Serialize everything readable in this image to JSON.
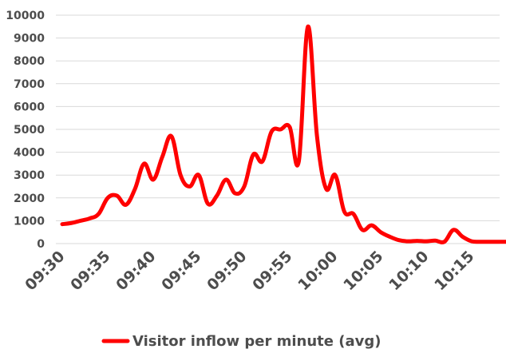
{
  "chart_data": {
    "type": "line",
    "title": "",
    "xlabel": "",
    "ylabel": "",
    "ylim": [
      0,
      10000
    ],
    "yticks": [
      0,
      1000,
      2000,
      3000,
      4000,
      5000,
      6000,
      7000,
      8000,
      9000,
      10000
    ],
    "ytick_labels": [
      "0",
      "1000",
      "2000",
      "3000",
      "4000",
      "5000",
      "6000",
      "7000",
      "8000",
      "9000",
      "10000"
    ],
    "xtick_labels": [
      "09:30",
      "09:35",
      "09:40",
      "09:45",
      "09:50",
      "09:55",
      "10:00",
      "10:05",
      "10:10",
      "10:15"
    ],
    "grid": true,
    "legend_position": "bottom",
    "series": [
      {
        "name": "Visitor inflow per minute (avg)",
        "color": "#ff0000",
        "x": [
          "09:30",
          "09:31",
          "09:32",
          "09:33",
          "09:34",
          "09:35",
          "09:36",
          "09:37",
          "09:38",
          "09:39",
          "09:40",
          "09:41",
          "09:42",
          "09:43",
          "09:44",
          "09:45",
          "09:46",
          "09:47",
          "09:48",
          "09:49",
          "09:50",
          "09:51",
          "09:52",
          "09:53",
          "09:54",
          "09:55",
          "09:56",
          "09:57",
          "09:58",
          "09:59",
          "10:00",
          "10:01",
          "10:02",
          "10:03",
          "10:04",
          "10:05",
          "10:06",
          "10:07",
          "10:08",
          "10:09",
          "10:10",
          "10:11",
          "10:12",
          "10:13",
          "10:14",
          "10:15",
          "10:16",
          "10:17",
          "10:18",
          "10:19"
        ],
        "values": [
          850,
          900,
          1000,
          1100,
          1300,
          2000,
          2100,
          1700,
          2400,
          3500,
          2800,
          3800,
          4700,
          3000,
          2500,
          3000,
          1750,
          2100,
          2800,
          2200,
          2500,
          3900,
          3600,
          4900,
          5000,
          5100,
          3600,
          9500,
          4700,
          2400,
          3000,
          1400,
          1300,
          600,
          800,
          500,
          300,
          150,
          100,
          120,
          100,
          130,
          80,
          600,
          300,
          100,
          80,
          80,
          80,
          80
        ]
      }
    ]
  }
}
